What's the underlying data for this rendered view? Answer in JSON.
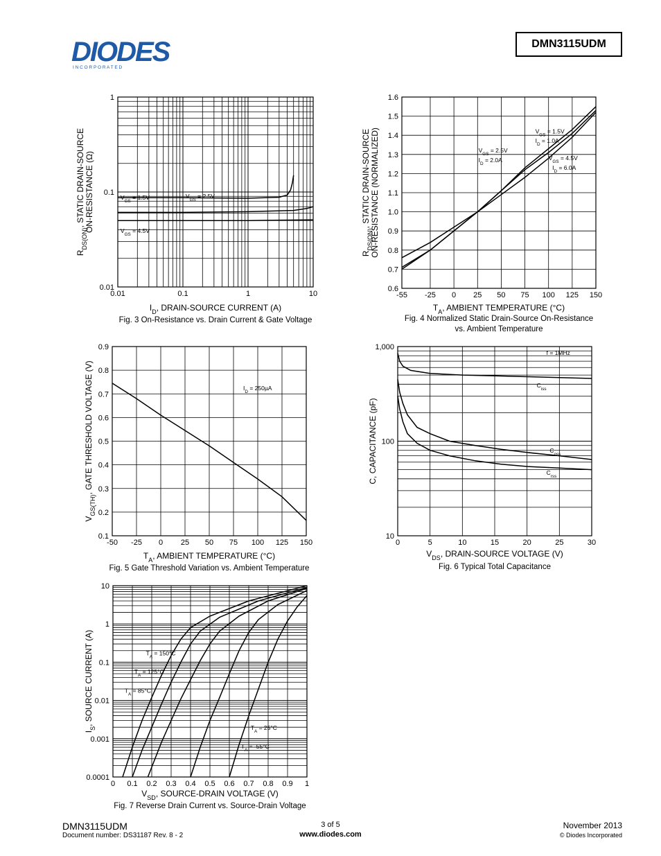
{
  "header": {
    "logo_text": "DIODES",
    "logo_subtext": "I N C O R P O R A T E D",
    "part_number": "DMN3115UDM"
  },
  "footer": {
    "part_number": "DMN3115UDM",
    "document_number": "Document number: DS31187 Rev. 8 - 2",
    "page": "3 of 5",
    "website": "www.diodes.com",
    "date": "November 2013",
    "copyright": "© Diodes Incorporated"
  },
  "chart_data": [
    {
      "id": "fig3",
      "type": "line",
      "caption": "Fig. 3  On-Resistance  vs. Drain Current & Gate Voltage",
      "xlabel": "I_D, DRAIN-SOURCE CURRENT (A)",
      "ylabel_line1": "R_DS(ON), STATIC DRAIN-SOURCE",
      "ylabel_line2": "ON-RESISTANCE (Ω)",
      "xscale": "log",
      "yscale": "log",
      "xlim": [
        0.01,
        10
      ],
      "ylim": [
        0.01,
        1
      ],
      "xticks": [
        {
          "v": 0.01,
          "label": "0.01"
        },
        {
          "v": 0.1,
          "label": "0.1"
        },
        {
          "v": 1,
          "label": "1"
        },
        {
          "v": 10,
          "label": "10"
        }
      ],
      "yticks": [
        {
          "v": 0.01,
          "label": "0.01"
        },
        {
          "v": 0.1,
          "label": "0.1"
        },
        {
          "v": 1,
          "label": "1"
        }
      ],
      "grid": true,
      "series": [
        {
          "name": "V_GS = 1.5V",
          "x": [
            0.01,
            0.1,
            1,
            3,
            4,
            4.5,
            4.8,
            5
          ],
          "y": [
            0.087,
            0.087,
            0.086,
            0.088,
            0.093,
            0.105,
            0.125,
            0.15
          ]
        },
        {
          "name": "V_GS = 2.5V",
          "x": [
            0.01,
            0.1,
            1,
            5,
            8,
            10
          ],
          "y": [
            0.061,
            0.061,
            0.062,
            0.064,
            0.067,
            0.07
          ]
        },
        {
          "name": "V_GS = 4.5V",
          "x": [
            0.01,
            0.1,
            1,
            10
          ],
          "y": [
            0.05,
            0.05,
            0.05,
            0.051
          ]
        }
      ],
      "annotations": [
        {
          "text": "V_GS = 1.5V",
          "x": 0.011,
          "y": 0.083
        },
        {
          "text": "V_GS = 2.5V",
          "x": 0.11,
          "y": 0.086
        },
        {
          "text": "V_GS = 4.5V",
          "x": 0.011,
          "y": 0.037
        }
      ]
    },
    {
      "id": "fig4",
      "type": "line",
      "caption_line1": "Fig. 4 Normalized Static Drain-Source On-Resistance",
      "caption_line2": "vs. Ambient Temperature",
      "xlabel": "T_A, AMBIENT TEMPERATURE (°C)",
      "ylabel_line1": "R_DS(ON), STATIC DRAIN-SOURCE",
      "ylabel_line2": "ON-RESISTANCE (NORMALIZED)",
      "xscale": "linear",
      "yscale": "linear",
      "xlim": [
        -55,
        150
      ],
      "ylim": [
        0.6,
        1.6
      ],
      "xticks": [
        {
          "v": -55,
          "label": "-55"
        },
        {
          "v": -25,
          "label": "-25"
        },
        {
          "v": 0,
          "label": "0"
        },
        {
          "v": 25,
          "label": "25"
        },
        {
          "v": 50,
          "label": "50"
        },
        {
          "v": 75,
          "label": "75"
        },
        {
          "v": 100,
          "label": "100"
        },
        {
          "v": 125,
          "label": "125"
        },
        {
          "v": 150,
          "label": "150"
        }
      ],
      "yticks": [
        {
          "v": 0.6,
          "label": "0.6"
        },
        {
          "v": 0.7,
          "label": "0.7"
        },
        {
          "v": 0.8,
          "label": "0.8"
        },
        {
          "v": 0.9,
          "label": "0.9"
        },
        {
          "v": 1.0,
          "label": "1.0"
        },
        {
          "v": 1.1,
          "label": "1.1"
        },
        {
          "v": 1.2,
          "label": "1.2"
        },
        {
          "v": 1.3,
          "label": "1.3"
        },
        {
          "v": 1.4,
          "label": "1.4"
        },
        {
          "v": 1.5,
          "label": "1.5"
        },
        {
          "v": 1.6,
          "label": "1.6"
        }
      ],
      "grid": true,
      "series": [
        {
          "name": "V_GS = 1.5V, I_D = 1.0A",
          "x": [
            -55,
            -25,
            0,
            25,
            50,
            75,
            100,
            125,
            150
          ],
          "y": [
            0.76,
            0.84,
            0.92,
            1.0,
            1.09,
            1.18,
            1.28,
            1.39,
            1.52
          ]
        },
        {
          "name": "V_GS = 2.5V, I_D = 2.0A",
          "x": [
            -55,
            -25,
            0,
            25,
            50,
            75,
            100,
            125,
            150
          ],
          "y": [
            0.71,
            0.8,
            0.9,
            1.0,
            1.11,
            1.22,
            1.31,
            1.41,
            1.53
          ]
        },
        {
          "name": "V_GS = 4.5V, I_D = 6.0A",
          "x": [
            -55,
            -25,
            0,
            25,
            50,
            75,
            100,
            125,
            150
          ],
          "y": [
            0.7,
            0.8,
            0.9,
            1.0,
            1.11,
            1.23,
            1.33,
            1.43,
            1.55
          ]
        }
      ],
      "annotations": [
        {
          "text": "V_GS = 1.5V",
          "x": 86,
          "y": 1.41
        },
        {
          "text": "I_D = 1.0A",
          "x": 86,
          "y": 1.36
        },
        {
          "text": "V_GS = 2.5V",
          "x": 26,
          "y": 1.31
        },
        {
          "text": "I_D = 2.0A",
          "x": 26,
          "y": 1.26
        },
        {
          "text": "V_GS = 4.5V",
          "x": 100,
          "y": 1.27
        },
        {
          "text": "I_D = 6.0A",
          "x": 104,
          "y": 1.22
        }
      ]
    },
    {
      "id": "fig5",
      "type": "line",
      "caption": "Fig. 5 Gate Threshold Variation vs. Ambient Temperature",
      "xlabel": "T_A, AMBIENT TEMPERATURE (°C)",
      "ylabel_line1": "V_GS(TH), GATE THRESHOLD VOLTAGE (V)",
      "xscale": "linear",
      "yscale": "linear",
      "xlim": [
        -50,
        150
      ],
      "ylim": [
        0.1,
        0.9
      ],
      "xticks": [
        {
          "v": -50,
          "label": "-50"
        },
        {
          "v": -25,
          "label": "-25"
        },
        {
          "v": 0,
          "label": "0"
        },
        {
          "v": 25,
          "label": "25"
        },
        {
          "v": 50,
          "label": "50"
        },
        {
          "v": 75,
          "label": "75"
        },
        {
          "v": 100,
          "label": "100"
        },
        {
          "v": 125,
          "label": "125"
        },
        {
          "v": 150,
          "label": "150"
        }
      ],
      "yticks": [
        {
          "v": 0.1,
          "label": "0.1"
        },
        {
          "v": 0.2,
          "label": "0.2"
        },
        {
          "v": 0.3,
          "label": "0.3"
        },
        {
          "v": 0.4,
          "label": "0.4"
        },
        {
          "v": 0.5,
          "label": "0.5"
        },
        {
          "v": 0.6,
          "label": "0.6"
        },
        {
          "v": 0.7,
          "label": "0.7"
        },
        {
          "v": 0.8,
          "label": "0.8"
        },
        {
          "v": 0.9,
          "label": "0.9"
        }
      ],
      "grid": true,
      "series": [
        {
          "name": "I_D = 250µA",
          "x": [
            -50,
            -25,
            0,
            25,
            50,
            75,
            100,
            125,
            150
          ],
          "y": [
            0.745,
            0.68,
            0.61,
            0.545,
            0.48,
            0.41,
            0.34,
            0.265,
            0.165
          ]
        }
      ],
      "annotations": [
        {
          "text": "I_D = 250µA",
          "x": 85,
          "y": 0.715
        }
      ]
    },
    {
      "id": "fig6",
      "type": "line",
      "caption": "Fig. 6  Typical Total Capacitance",
      "xlabel": "V_DS, DRAIN-SOURCE VOLTAGE (V)",
      "ylabel_line1": "C, CAPACITANCE (pF)",
      "xscale": "linear",
      "yscale": "log",
      "xlim": [
        0,
        30
      ],
      "ylim": [
        10,
        1000
      ],
      "xticks": [
        {
          "v": 0,
          "label": "0"
        },
        {
          "v": 5,
          "label": "5"
        },
        {
          "v": 10,
          "label": "10"
        },
        {
          "v": 15,
          "label": "15"
        },
        {
          "v": 20,
          "label": "20"
        },
        {
          "v": 25,
          "label": "25"
        },
        {
          "v": 30,
          "label": "30"
        }
      ],
      "yticks": [
        {
          "v": 10,
          "label": "10"
        },
        {
          "v": 100,
          "label": "100"
        },
        {
          "v": 1000,
          "label": "1,000"
        }
      ],
      "grid": true,
      "series": [
        {
          "name": "C_iss",
          "x": [
            0,
            0.3,
            0.8,
            2,
            5,
            10,
            15,
            20,
            25,
            30
          ],
          "y": [
            850,
            700,
            620,
            560,
            520,
            500,
            490,
            480,
            470,
            460
          ]
        },
        {
          "name": "C_oss",
          "x": [
            0,
            0.3,
            0.8,
            1.5,
            3,
            5,
            8,
            12,
            16,
            20,
            25,
            30
          ],
          "y": [
            450,
            330,
            250,
            190,
            140,
            120,
            100,
            90,
            82,
            76,
            70,
            64
          ]
        },
        {
          "name": "C_rss",
          "x": [
            0,
            0.3,
            0.8,
            1.5,
            3,
            5,
            8,
            12,
            16,
            20,
            25,
            30
          ],
          "y": [
            300,
            220,
            160,
            120,
            95,
            80,
            70,
            62,
            57,
            54,
            52,
            50
          ]
        }
      ],
      "annotations": [
        {
          "text": "f = 1MHz",
          "x": 23,
          "y": 820
        },
        {
          "text": "C_iss",
          "x": 21.5,
          "y": 370
        },
        {
          "text": "C_oss",
          "x": 23.5,
          "y": 76
        },
        {
          "text": "C_rss",
          "x": 23,
          "y": 44
        }
      ]
    },
    {
      "id": "fig7",
      "type": "line",
      "caption": "Fig. 7   Reverse Drain Current vs. Source-Drain Voltage",
      "xlabel": "V_SD, SOURCE-DRAIN VOLTAGE (V)",
      "ylabel_line1": "I_S, SOURCE CURRENT (A)",
      "xscale": "linear",
      "yscale": "log",
      "xlim": [
        0,
        1
      ],
      "ylim": [
        0.0001,
        10
      ],
      "xticks": [
        {
          "v": 0,
          "label": "0"
        },
        {
          "v": 0.1,
          "label": "0.1"
        },
        {
          "v": 0.2,
          "label": "0.2"
        },
        {
          "v": 0.3,
          "label": "0.3"
        },
        {
          "v": 0.4,
          "label": "0.4"
        },
        {
          "v": 0.5,
          "label": "0.5"
        },
        {
          "v": 0.6,
          "label": "0.6"
        },
        {
          "v": 0.7,
          "label": "0.7"
        },
        {
          "v": 0.8,
          "label": "0.8"
        },
        {
          "v": 0.9,
          "label": "0.9"
        },
        {
          "v": 1,
          "label": "1"
        }
      ],
      "yticks": [
        {
          "v": 0.0001,
          "label": "0.0001"
        },
        {
          "v": 0.001,
          "label": "0.001"
        },
        {
          "v": 0.01,
          "label": "0.01"
        },
        {
          "v": 0.1,
          "label": "0.1"
        },
        {
          "v": 1,
          "label": "1"
        },
        {
          "v": 10,
          "label": "10"
        }
      ],
      "grid": true,
      "series": [
        {
          "name": "T_A = 150°C",
          "x": [
            0.05,
            0.1,
            0.15,
            0.2,
            0.25,
            0.3,
            0.35,
            0.4,
            0.5,
            0.7,
            1.0
          ],
          "y": [
            0.0001,
            0.0006,
            0.003,
            0.012,
            0.045,
            0.15,
            0.4,
            0.8,
            1.6,
            4,
            10
          ]
        },
        {
          "name": "T_A = 125°C",
          "x": [
            0.1,
            0.15,
            0.2,
            0.25,
            0.3,
            0.35,
            0.4,
            0.45,
            0.55,
            0.75,
            1.0
          ],
          "y": [
            0.0001,
            0.0005,
            0.002,
            0.008,
            0.03,
            0.1,
            0.3,
            0.65,
            1.5,
            4,
            9
          ]
        },
        {
          "name": "T_A = 85°C",
          "x": [
            0.18,
            0.25,
            0.3,
            0.35,
            0.4,
            0.45,
            0.5,
            0.55,
            0.65,
            0.8,
            1.0
          ],
          "y": [
            0.0001,
            0.0008,
            0.003,
            0.011,
            0.035,
            0.11,
            0.3,
            0.65,
            1.6,
            4,
            8.5
          ]
        },
        {
          "name": "T_A = 25°C",
          "x": [
            0.4,
            0.45,
            0.5,
            0.55,
            0.6,
            0.65,
            0.7,
            0.75,
            0.85,
            1.0
          ],
          "y": [
            0.0001,
            0.0006,
            0.003,
            0.012,
            0.05,
            0.2,
            0.6,
            1.3,
            3.2,
            7.5
          ]
        },
        {
          "name": "T_A = -55°C",
          "x": [
            0.6,
            0.65,
            0.7,
            0.75,
            0.8,
            0.85,
            0.9,
            0.95,
            1.0
          ],
          "y": [
            0.0001,
            0.0007,
            0.004,
            0.02,
            0.1,
            0.4,
            1.2,
            2.8,
            5.5
          ]
        }
      ],
      "annotations": [
        {
          "text": "T_A = 150°C",
          "x": 0.17,
          "y": 0.15
        },
        {
          "text": "T_A = 125°C",
          "x": 0.11,
          "y": 0.05
        },
        {
          "text": "T_A = 85°C",
          "x": 0.06,
          "y": 0.016
        },
        {
          "text": "T_A = 25°C",
          "x": 0.71,
          "y": 0.0017
        },
        {
          "text": "T_A = -55°C",
          "x": 0.66,
          "y": 0.00055
        }
      ]
    }
  ]
}
